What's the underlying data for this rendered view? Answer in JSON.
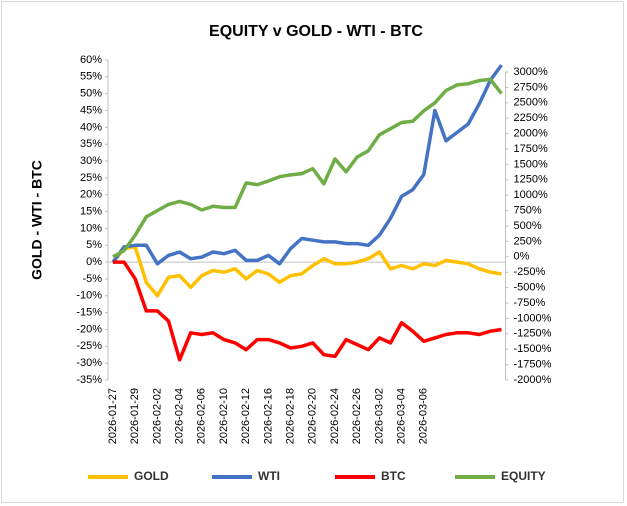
{
  "chart_data": {
    "type": "line",
    "title": "EQUITY  v  GOLD - WTI - BTC",
    "y_label": "GOLD - WTI - BTC",
    "categories": [
      "2026-01-27",
      null,
      "2026-01-29",
      null,
      "2026-02-02",
      null,
      "2026-02-04",
      null,
      "2026-02-06",
      null,
      "2026-02-10",
      null,
      "2026-02-12",
      null,
      "2026-02-16",
      null,
      "2026-02-18",
      null,
      "2026-02-20",
      null,
      "2026-02-24",
      null,
      "2026-02-26",
      null,
      "2026-03-02",
      null,
      "2026-03-04",
      null,
      "2026-03-06",
      null,
      null,
      null,
      null,
      null,
      null,
      null
    ],
    "series": [
      {
        "name": "GOLD",
        "color": "#ffc000",
        "values": [
          0,
          4,
          4.5,
          -6,
          -10,
          -4.5,
          -4,
          -7.5,
          -4,
          -2.5,
          -3,
          -2,
          -5,
          -2.5,
          -3.5,
          -6,
          -4,
          -3.5,
          -1,
          1,
          -0.5,
          -0.5,
          0,
          1,
          3,
          -2,
          -1,
          -2,
          -0.5,
          -1,
          0.5,
          0,
          -0.5,
          -2,
          -3,
          -3.5
        ]
      },
      {
        "name": "WTI",
        "color": "#4472c4",
        "values": [
          0,
          4.5,
          5,
          5,
          -0.5,
          2,
          3,
          1,
          1.5,
          3,
          2.5,
          3.5,
          0.5,
          0.5,
          2,
          -0.5,
          4,
          7,
          6.5,
          6,
          6,
          5.5,
          5.5,
          5,
          8,
          13,
          19.5,
          21.5,
          26,
          45,
          36,
          38.5,
          41,
          47,
          54,
          58.5
        ]
      },
      {
        "name": "BTC",
        "color": "#ff0000",
        "values": [
          0,
          0,
          -5,
          -14.5,
          -14.5,
          -17.5,
          -29,
          -21,
          -21.5,
          -21,
          -23,
          -24,
          -26,
          -23,
          -23,
          -24,
          -25.5,
          -25,
          -24,
          -27.5,
          -28,
          -23,
          -24.5,
          -26,
          -22.5,
          -24,
          -18,
          -20.5,
          -23.5,
          -22.5,
          -21.5,
          -21,
          -21,
          -21.5,
          -20.5,
          -20
        ]
      },
      {
        "name": "EQUITY",
        "color": "#70ad47",
        "axis": "y2",
        "values": [
          0,
          100,
          350,
          650,
          750,
          850,
          900,
          850,
          760,
          820,
          800,
          800,
          1200,
          1170,
          1230,
          1300,
          1330,
          1350,
          1430,
          1185,
          1590,
          1380,
          1620,
          1720,
          1980,
          2080,
          2180,
          2200,
          2370,
          2500,
          2700,
          2790,
          2810,
          2860,
          2880,
          2650
        ]
      }
    ],
    "ylim": [
      -35,
      60
    ],
    "yticks": [
      {
        "value": -35,
        "label": "-35%"
      },
      {
        "value": -30,
        "label": "-30%"
      },
      {
        "value": -25,
        "label": "-25%"
      },
      {
        "value": -20,
        "label": "-20%"
      },
      {
        "value": -15,
        "label": "-15%"
      },
      {
        "value": -10,
        "label": "-10%"
      },
      {
        "value": -5,
        "label": "-5%"
      },
      {
        "value": 0,
        "label": "0%"
      },
      {
        "value": 5,
        "label": "5%"
      },
      {
        "value": 10,
        "label": "10%"
      },
      {
        "value": 15,
        "label": "15%"
      },
      {
        "value": 20,
        "label": "20%"
      },
      {
        "value": 25,
        "label": "25%"
      },
      {
        "value": 30,
        "label": "30%"
      },
      {
        "value": 35,
        "label": "35%"
      },
      {
        "value": 40,
        "label": "40%"
      },
      {
        "value": 45,
        "label": "45%"
      },
      {
        "value": 50,
        "label": "50%"
      },
      {
        "value": 55,
        "label": "55%"
      },
      {
        "value": 60,
        "label": "60%"
      }
    ],
    "y2lim": [
      -2000,
      3000
    ],
    "y2ticks": [
      {
        "value": -2000,
        "label": "-2000%"
      },
      {
        "value": -1750,
        "label": "-1750%"
      },
      {
        "value": -1500,
        "label": "-1500%"
      },
      {
        "value": -1250,
        "label": "-1250%"
      },
      {
        "value": -1000,
        "label": "-1000%"
      },
      {
        "value": -750,
        "label": "-750%"
      },
      {
        "value": -500,
        "label": "-500%"
      },
      {
        "value": -250,
        "label": "-250%"
      },
      {
        "value": 0,
        "label": "0%"
      },
      {
        "value": 250,
        "label": "250%"
      },
      {
        "value": 500,
        "label": "500%"
      },
      {
        "value": 750,
        "label": "750%"
      },
      {
        "value": 1000,
        "label": "1000%"
      },
      {
        "value": 1250,
        "label": "1250%"
      },
      {
        "value": 1500,
        "label": "1500%"
      },
      {
        "value": 1750,
        "label": "1750%"
      },
      {
        "value": 2000,
        "label": "2000%"
      },
      {
        "value": 2250,
        "label": "2250%"
      },
      {
        "value": 2500,
        "label": "2500%"
      },
      {
        "value": 2750,
        "label": "2750%"
      },
      {
        "value": 3000,
        "label": "3000%"
      }
    ],
    "legend": "bottom"
  }
}
